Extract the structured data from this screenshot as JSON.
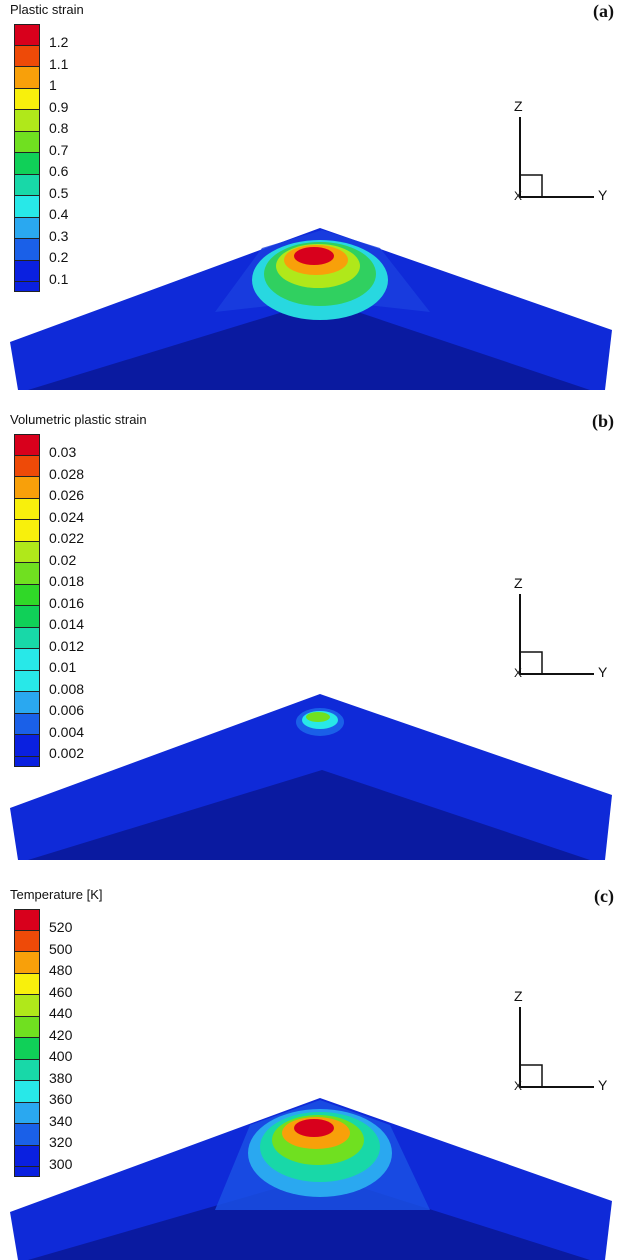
{
  "panels": [
    {
      "letter": "(a)",
      "title": "Plastic strain",
      "legend": [
        "1.2",
        "1.1",
        "1",
        "0.9",
        "0.8",
        "0.7",
        "0.6",
        "0.5",
        "0.4",
        "0.3",
        "0.2",
        "0.1"
      ],
      "axis_z": "Z",
      "axis_y": "Y",
      "axis_x": "X"
    },
    {
      "letter": "(b)",
      "title": "Volumetric plastic strain",
      "legend": [
        "0.03",
        "0.028",
        "0.026",
        "0.024",
        "0.022",
        "0.02",
        "0.018",
        "0.016",
        "0.014",
        "0.012",
        "0.01",
        "0.008",
        "0.006",
        "0.004",
        "0.002"
      ],
      "axis_z": "Z",
      "axis_y": "Y",
      "axis_x": "X"
    },
    {
      "letter": "(c)",
      "title": "Temperature [K]",
      "legend": [
        "520",
        "500",
        "480",
        "460",
        "440",
        "420",
        "400",
        "380",
        "360",
        "340",
        "320",
        "300"
      ],
      "axis_z": "Z",
      "axis_y": "Y",
      "axis_x": "X"
    }
  ],
  "colors": {
    "scale": [
      "#d8001c",
      "#ee4a08",
      "#f8a00a",
      "#f8f00c",
      "#b0e81a",
      "#70e020",
      "#30d828",
      "#10d058",
      "#18d8a8",
      "#28e8e8",
      "#2aa8f0",
      "#1a60e8",
      "#0a20e0"
    ],
    "mesh_dark": "#0a1aa0",
    "mesh_mid": "#0f2ad8"
  }
}
